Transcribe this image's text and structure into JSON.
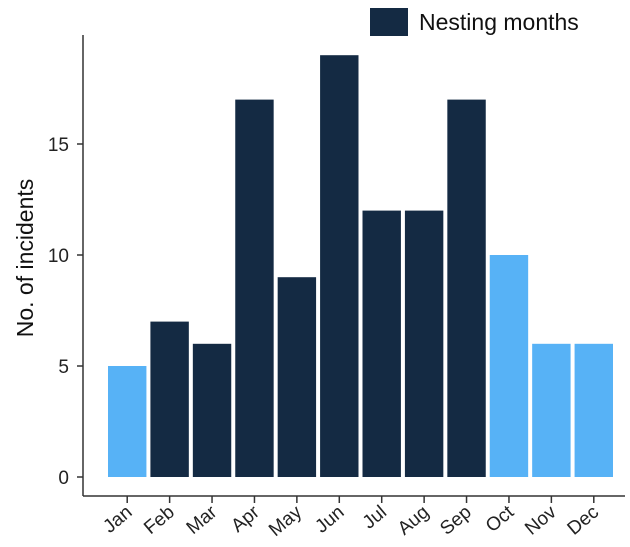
{
  "chart_data": {
    "type": "bar",
    "categories": [
      "Jan",
      "Feb",
      "Mar",
      "Apr",
      "May",
      "Jun",
      "Jul",
      "Aug",
      "Sep",
      "Oct",
      "Nov",
      "Dec"
    ],
    "values": [
      5,
      7,
      6,
      17,
      9,
      19,
      12,
      12,
      17,
      10,
      6,
      6
    ],
    "nesting": [
      false,
      true,
      true,
      true,
      true,
      true,
      true,
      true,
      true,
      false,
      false,
      false
    ],
    "ylabel": "No. of incidents",
    "xlabel": "",
    "ylim": [
      0,
      20
    ],
    "yticks": [
      0,
      5,
      10,
      15
    ],
    "legend": {
      "label": "Nesting months",
      "placement": "top-right"
    },
    "colors": {
      "nesting": "#142a43",
      "non_nesting": "#57b2f6"
    },
    "grid": false
  }
}
